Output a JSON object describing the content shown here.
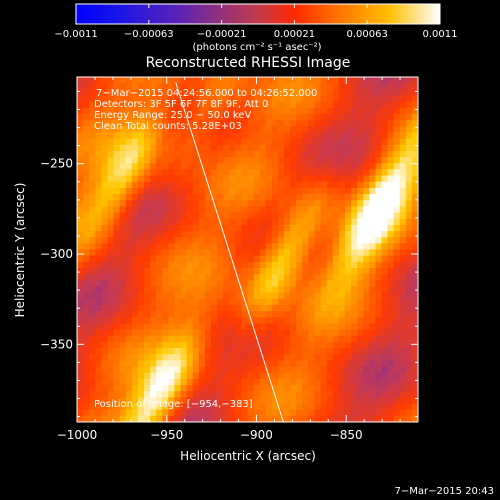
{
  "colorbar": {
    "ticks": [
      "−0.0011",
      "−0.00063",
      "−0.00021",
      "0.00021",
      "0.00063",
      "0.0011"
    ],
    "unit_label": "(photons cm⁻² s⁻¹ asec⁻²)"
  },
  "chart_data": {
    "type": "heatmap",
    "title": "Reconstructed RHESSI Image",
    "xlabel": "Heliocentric X (arcsec)",
    "ylabel": "Heliocentric Y (arcsec)",
    "xlim": [
      -1000,
      -810
    ],
    "ylim": [
      -393,
      -202
    ],
    "x_ticks": [
      -1000,
      -950,
      -900,
      -850
    ],
    "y_ticks": [
      -250,
      -300,
      -350
    ],
    "x_tick_labels": [
      "−1000",
      "−950",
      "−900",
      "−850"
    ],
    "y_tick_labels": [
      "−250",
      "−300",
      "−350"
    ],
    "value_range": [
      -0.0011,
      0.0011
    ],
    "colormap": [
      "#0000ff",
      "#5a1fb0",
      "#c03a5a",
      "#ff3a00",
      "#ff7f00",
      "#ffc800",
      "#ffffff"
    ],
    "stripe_angle_deg": 60,
    "bright_features": [
      {
        "x": -885,
        "y": -303,
        "peak": 0.0011
      },
      {
        "x": -832,
        "y": -275,
        "peak": 0.0011
      },
      {
        "x": -975,
        "y": -258,
        "peak": 0.0009
      },
      {
        "x": -955,
        "y": -380,
        "peak": 0.0011
      },
      {
        "x": -925,
        "y": -215,
        "peak": 0.0006
      }
    ],
    "limb_line": {
      "x1": -945,
      "y1": -205,
      "x2": -885,
      "y2": -393
    },
    "annotations": [
      "7−Mar−2015 04:24:56.000 to 04:26:52.000",
      "Detectors: 3F 5F 6F 7F 8F 9F, Att 0",
      "Energy Range: 25.0 − 50.0 keV",
      "Clean     Total counts: 5.28E+03"
    ],
    "position_label": "Position of Image: [−954,−383]"
  },
  "footer": {
    "timestamp": "7−Mar−2015 20:43"
  }
}
